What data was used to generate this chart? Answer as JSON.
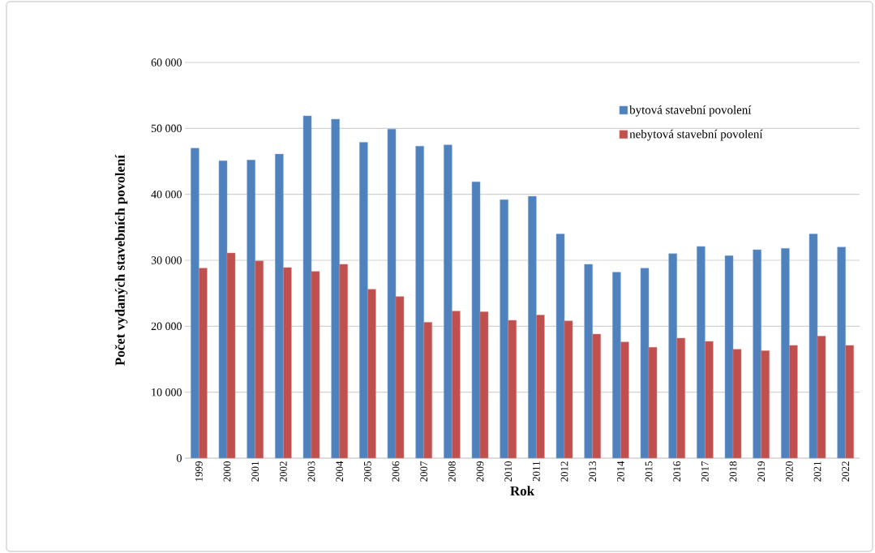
{
  "chart_data": {
    "type": "bar",
    "xlabel": "Rok",
    "ylabel": "Počet vydaných stavebních povolení",
    "categories": [
      "1999",
      "2000",
      "2001",
      "2002",
      "2003",
      "2004",
      "2005",
      "2006",
      "2007",
      "2008",
      "2009",
      "2010",
      "2011",
      "2012",
      "2013",
      "2014",
      "2015",
      "2016",
      "2017",
      "2018",
      "2019",
      "2020",
      "2021",
      "2022"
    ],
    "series": [
      {
        "name": "bytová stavební povolení",
        "color": "#4f81bd",
        "values": [
          47000,
          45100,
          45200,
          46100,
          51900,
          51400,
          47900,
          49900,
          47300,
          47500,
          41900,
          39200,
          39700,
          34000,
          29400,
          28200,
          28800,
          31000,
          32100,
          30700,
          31600,
          31800,
          34000,
          32000
        ]
      },
      {
        "name": "nebytová stavební povolení",
        "color": "#c0504d",
        "values": [
          28800,
          31100,
          29900,
          28900,
          28300,
          29400,
          25600,
          24500,
          20600,
          22300,
          22200,
          20900,
          21700,
          20800,
          18800,
          17600,
          16800,
          18200,
          17700,
          16500,
          16300,
          17100,
          18500,
          17100
        ]
      }
    ],
    "ylim": [
      0,
      60000
    ],
    "yticks": [
      {
        "value": 0,
        "label": "0"
      },
      {
        "value": 10000,
        "label": "10 000"
      },
      {
        "value": 20000,
        "label": "20 000"
      },
      {
        "value": 30000,
        "label": "30 000"
      },
      {
        "value": 40000,
        "label": "40 000"
      },
      {
        "value": 50000,
        "label": "50 000"
      },
      {
        "value": 60000,
        "label": "60 000"
      }
    ],
    "grid": "y",
    "legend": "top right"
  }
}
